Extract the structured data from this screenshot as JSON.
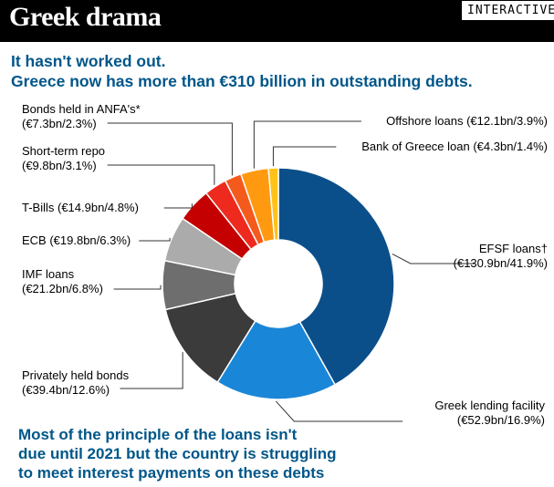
{
  "header": {
    "title": "Greek drama",
    "badge": "INTERACTIVE"
  },
  "subtitle": {
    "line1": "It hasn't worked out.",
    "line2": "Greece now has more than €310 billion in outstanding debts."
  },
  "footnote": {
    "line1": "Most of the principle of the loans isn't",
    "line2": "due until 2021 but the country is struggling",
    "line3": "to meet interest payments on these debts"
  },
  "chart_data": {
    "type": "pie",
    "unit": "€bn",
    "slices": [
      {
        "name": "EFSF loans†",
        "value": 130.9,
        "percent": 41.9,
        "color": "#0b4f8a",
        "label": [
          "EFSF loans†",
          "(€130.9bn/41.9%)"
        ]
      },
      {
        "name": "Greek lending facility",
        "value": 52.9,
        "percent": 16.9,
        "color": "#1a86d8",
        "label": [
          "Greek lending facility",
          "(€52.9bn/16.9%)"
        ]
      },
      {
        "name": "Privately held bonds",
        "value": 39.4,
        "percent": 12.6,
        "color": "#3b3b3b",
        "label": [
          "Privately held bonds",
          "(€39.4bn/12.6%)"
        ]
      },
      {
        "name": "IMF loans",
        "value": 21.2,
        "percent": 6.8,
        "color": "#6e6e6e",
        "label": [
          "IMF loans",
          "(€21.2bn/6.8%)"
        ]
      },
      {
        "name": "ECB",
        "value": 19.8,
        "percent": 6.3,
        "color": "#ababab",
        "label": [
          "ECB (€19.8bn/6.3%)"
        ]
      },
      {
        "name": "T-Bills",
        "value": 14.9,
        "percent": 4.8,
        "color": "#c40000",
        "label": [
          "T-Bills (€14.9bn/4.8%)"
        ]
      },
      {
        "name": "Short-term repo",
        "value": 9.8,
        "percent": 3.1,
        "color": "#ee2a1f",
        "label": [
          "Short-term repo",
          "(€9.8bn/3.1%)"
        ]
      },
      {
        "name": "Bonds held in ANFA's*",
        "value": 7.3,
        "percent": 2.3,
        "color": "#f45a1c",
        "label": [
          "Bonds held in ANFA's*",
          "(€7.3bn/2.3%)"
        ]
      },
      {
        "name": "Offshore loans",
        "value": 12.1,
        "percent": 3.9,
        "color": "#ff9a10",
        "label": [
          "Offshore loans (€12.1bn/3.9%)"
        ]
      },
      {
        "name": "Bank of Greece loan",
        "value": 4.3,
        "percent": 1.4,
        "color": "#ffc21a",
        "label": [
          "Bank of Greece loan (€4.3bn/1.4%)"
        ]
      }
    ]
  }
}
